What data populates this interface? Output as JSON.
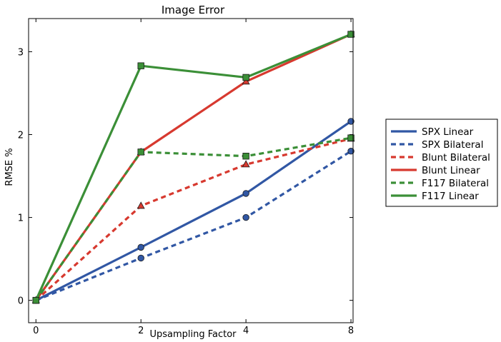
{
  "chart_data": {
    "type": "line",
    "title": "Image Error",
    "xlabel": "Upsampling Factor",
    "ylabel": "RMSE %",
    "categories": [
      "0",
      "2",
      "4",
      "8"
    ],
    "x_positions": [
      0,
      1,
      2,
      3
    ],
    "xlim": [
      -0.07,
      3.02
    ],
    "ylim": [
      -0.27,
      3.4
    ],
    "yticks": [
      0,
      1,
      2,
      3
    ],
    "grid": false,
    "legend_placement": "outside-right",
    "series": [
      {
        "name": "SPX Linear",
        "values": [
          0,
          0.64,
          1.29,
          2.16
        ],
        "color": "#3157a4",
        "dash": false,
        "marker": "circle"
      },
      {
        "name": "SPX Bilateral",
        "values": [
          0,
          0.51,
          1.0,
          1.8
        ],
        "color": "#3157a4",
        "dash": true,
        "marker": "circle"
      },
      {
        "name": "Blunt Bilateral",
        "values": [
          0,
          1.14,
          1.64,
          1.95
        ],
        "color": "#d7392f",
        "dash": true,
        "marker": "triangle"
      },
      {
        "name": "Blunt Linear",
        "values": [
          0,
          1.79,
          2.64,
          3.21
        ],
        "color": "#d7392f",
        "dash": false,
        "marker": "triangle"
      },
      {
        "name": "F117 Bilateral",
        "values": [
          0,
          1.79,
          1.74,
          1.96
        ],
        "color": "#3b8f37",
        "dash": true,
        "marker": "square"
      },
      {
        "name": "F117 Linear",
        "values": [
          0,
          2.83,
          2.69,
          3.21
        ],
        "color": "#3b8f37",
        "dash": false,
        "marker": "square"
      }
    ]
  }
}
